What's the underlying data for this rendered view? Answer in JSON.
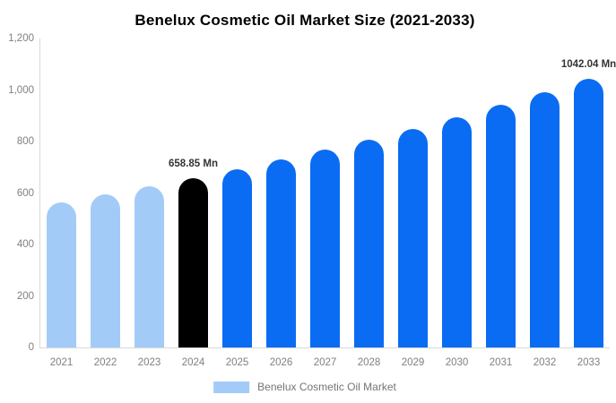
{
  "chart_data": {
    "type": "bar",
    "title": "Benelux Cosmetic Oil Market Size (2021-2033)",
    "xlabel": "",
    "ylabel": "",
    "ylim": [
      0,
      1200
    ],
    "y_ticks": [
      "0",
      "200",
      "400",
      "600",
      "800",
      "1,000",
      "1,200"
    ],
    "y_tick_values": [
      0,
      200,
      400,
      600,
      800,
      1000,
      1200
    ],
    "categories": [
      "2021",
      "2022",
      "2023",
      "2024",
      "2025",
      "2026",
      "2027",
      "2028",
      "2029",
      "2030",
      "2031",
      "2032",
      "2033"
    ],
    "values": [
      565,
      595,
      626,
      658.85,
      693.3,
      729.6,
      767.7,
      807.9,
      850.1,
      894.6,
      941.4,
      990.6,
      1042.04
    ],
    "unit": "Mn",
    "bar_colors": [
      "#a3cbf8",
      "#a3cbf8",
      "#a3cbf8",
      "#000000",
      "#0a6cf3",
      "#0a6cf3",
      "#0a6cf3",
      "#0a6cf3",
      "#0a6cf3",
      "#0a6cf3",
      "#0a6cf3",
      "#0a6cf3",
      "#0a6cf3"
    ],
    "annotations": [
      {
        "index": 3,
        "label": "658.85 Mn"
      },
      {
        "index": 12,
        "label": "1042.04 Mn"
      }
    ],
    "legend": [
      "Benelux Cosmetic Oil Market"
    ],
    "legend_swatch_color": "#a3cbf8",
    "legend_position": "bottom-center",
    "grid": false,
    "axis_line_color": "#d9d9d9",
    "axis_text_color": "#808080",
    "annotation_text_color": "#333333",
    "title_color": "#000000",
    "background_color": "#ffffff"
  }
}
